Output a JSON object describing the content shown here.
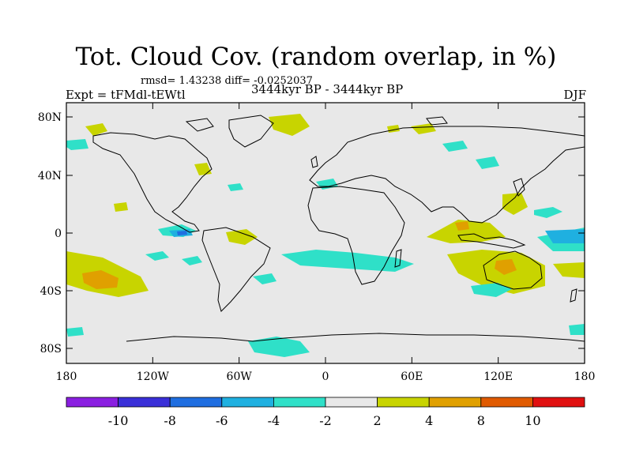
{
  "title": "Tot. Cloud Cov. (random overlap, in %)",
  "stats": "rmsd= 1.43238 diff= -0.0252037",
  "experiment": "Expt = tFMdl-tEWtl",
  "period": "3444kyr BP - 3444kyr BP",
  "season": "DJF",
  "lat_ticks": [
    "80N",
    "40N",
    "0",
    "40S",
    "80S"
  ],
  "lon_ticks": [
    "180",
    "120W",
    "60W",
    "0",
    "60E",
    "120E",
    "180"
  ],
  "colorbar": {
    "labels": [
      "-10",
      "-8",
      "-6",
      "-4",
      "-2",
      "2",
      "4",
      "8",
      "10"
    ],
    "colors": [
      "#8a1fe0",
      "#3a2fd8",
      "#1f6ee0",
      "#1fb0e0",
      "#2fe0c8",
      "#e8e8e8",
      "#c8d400",
      "#e0a000",
      "#e05a00",
      "#e01010"
    ]
  },
  "colors": {
    "background_field": "#e8e8e8",
    "pos_2_4": "#c8d400",
    "pos_4_8": "#e0a000",
    "neg_2_4": "#2fe0c8",
    "neg_4_6": "#1fb0e0",
    "neg_6_8": "#1f6ee0",
    "coast": "#000000"
  }
}
